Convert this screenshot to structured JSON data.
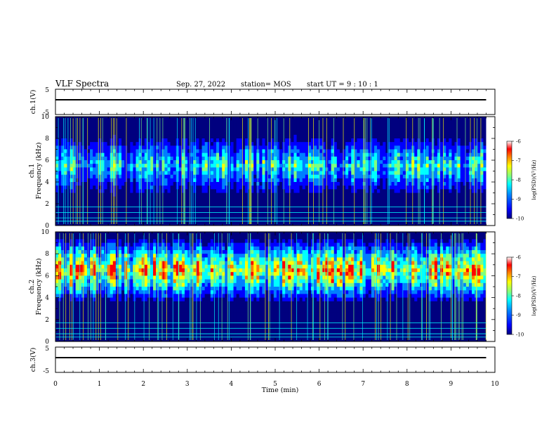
{
  "header": {
    "title": "VLF Spectra",
    "date": "Sep. 27, 2022",
    "station": "station= MOS",
    "start": "start  UT  =   9 : 10 : 1"
  },
  "chart_data": [
    {
      "id": "ch1-voltage",
      "type": "line",
      "ylabel": "ch.1(V)",
      "ylim": [
        -5,
        5
      ],
      "yticks": [
        "5",
        "-5"
      ],
      "xlim": [
        0,
        10
      ],
      "x": [
        0,
        9.8
      ],
      "y": [
        0,
        0
      ]
    },
    {
      "id": "ch1-spectrogram",
      "type": "heatmap",
      "ylabel": "ch.1\nFrequency (kHz)",
      "ylim": [
        0,
        10
      ],
      "yticks": [
        "0",
        "2",
        "4",
        "6",
        "8",
        "10"
      ],
      "xlim": [
        0,
        10
      ],
      "data_xmax": 9.8,
      "band_center_khz": 5.5,
      "band_intensity": "moderate",
      "colorbar": {
        "label": "log(PSD)(V²/Hz)",
        "range": [
          -10,
          -6
        ],
        "ticks": [
          "-6",
          "-7",
          "-8",
          "-9",
          "-10"
        ]
      }
    },
    {
      "id": "ch2-spectrogram",
      "type": "heatmap",
      "ylabel": "ch.2\nFrequency (kHz)",
      "ylim": [
        0,
        10
      ],
      "yticks": [
        "0",
        "2",
        "4",
        "6",
        "8",
        "10"
      ],
      "xlim": [
        0,
        10
      ],
      "data_xmax": 9.8,
      "band_center_khz": 6.5,
      "band_intensity": "strong",
      "colorbar": {
        "label": "log(PSD)(V²/Hz)",
        "range": [
          -10,
          -6
        ],
        "ticks": [
          "-6",
          "-7",
          "-8",
          "-9",
          "-10"
        ]
      }
    },
    {
      "id": "ch3-voltage",
      "type": "line",
      "ylabel": "ch.3(V)",
      "ylim": [
        -5,
        5
      ],
      "yticks": [
        "5",
        "-5"
      ],
      "xlim": [
        0,
        10
      ],
      "xlabel": "Time  (min)",
      "xticks": [
        "0",
        "1",
        "2",
        "3",
        "4",
        "5",
        "6",
        "7",
        "8",
        "9",
        "10"
      ],
      "x": [
        0,
        9.8
      ],
      "y": [
        0,
        0
      ]
    }
  ],
  "colors": {
    "colormap": [
      "#00007f",
      "#0000ff",
      "#007fff",
      "#00ffff",
      "#7fff7f",
      "#ffff00",
      "#ff7f00",
      "#ff0000",
      "#ffffff"
    ]
  }
}
